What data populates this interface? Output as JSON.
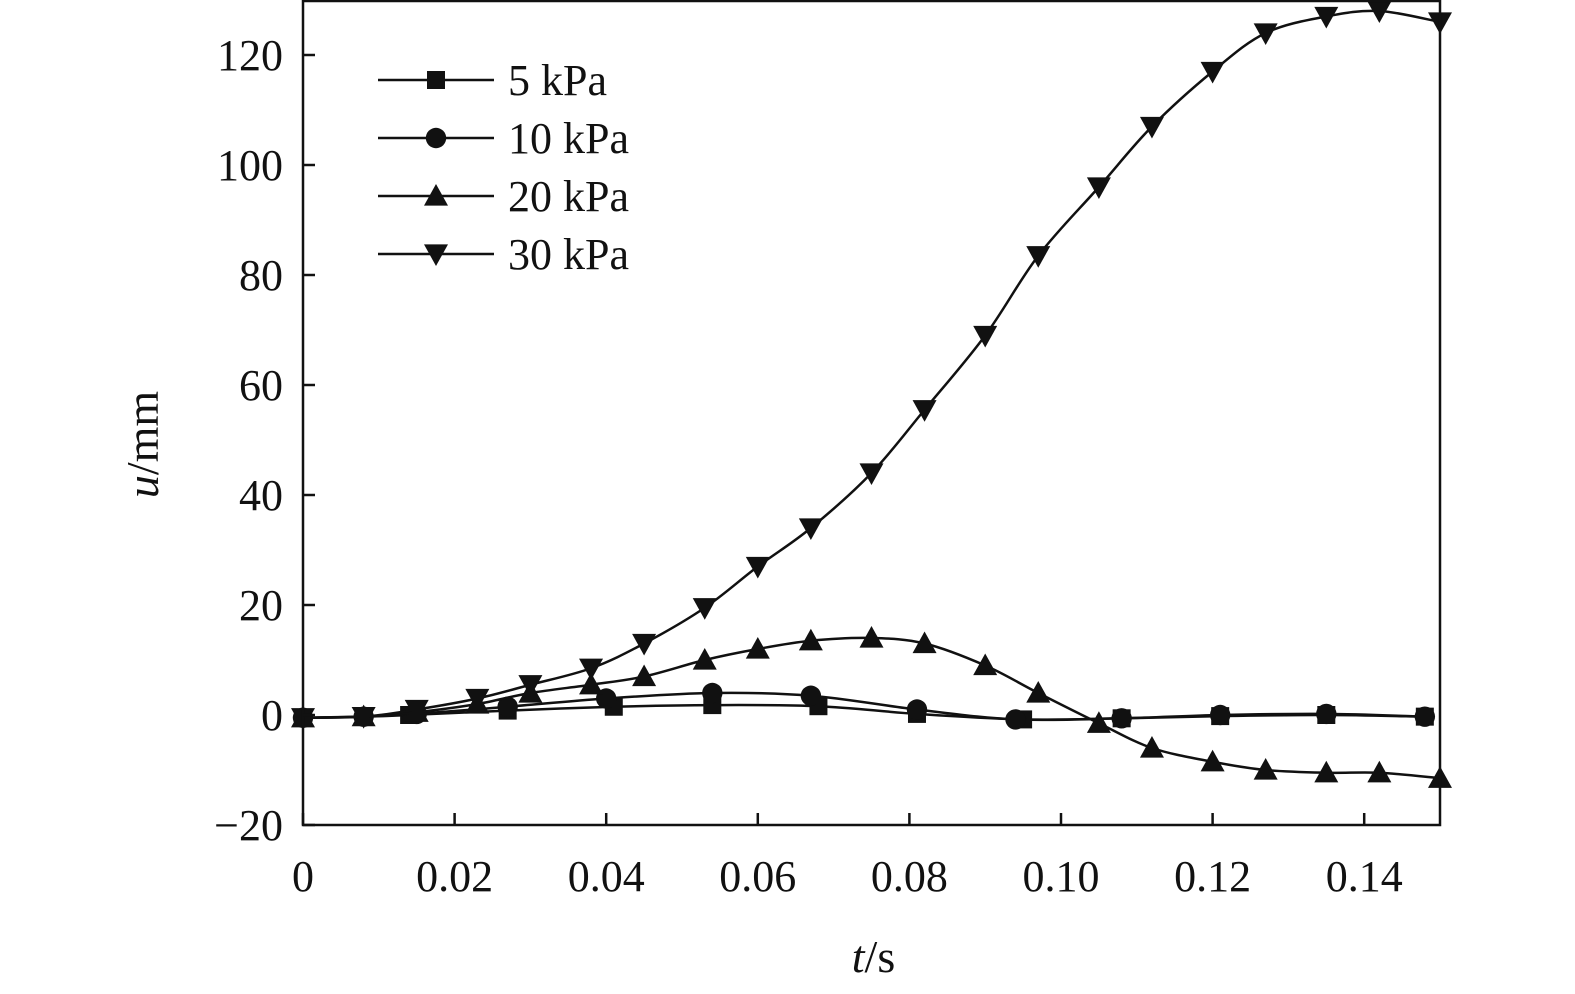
{
  "chart_data": {
    "type": "line",
    "title": "",
    "xlabel_var": "t",
    "xlabel_unit": "/s",
    "ylabel_var": "u",
    "ylabel_unit": "/mm",
    "xlim": [
      0,
      0.15
    ],
    "ylim": [
      -20,
      130
    ],
    "xticks": [
      0,
      0.02,
      0.04,
      0.06,
      0.08,
      0.1,
      0.12,
      0.14
    ],
    "xtick_labels": [
      "0",
      "0.02",
      "0.04",
      "0.06",
      "0.08",
      "0.10",
      "0.12",
      "0.14"
    ],
    "yticks": [
      -20,
      0,
      20,
      40,
      60,
      80,
      100,
      120
    ],
    "ytick_labels": [
      "−20",
      "0",
      "20",
      "40",
      "60",
      "80",
      "100",
      "120"
    ],
    "grid": false,
    "legend_position": "top-left",
    "series": [
      {
        "name": "5 kPa",
        "marker": "square",
        "x": [
          0,
          0.008,
          0.014,
          0.027,
          0.041,
          0.054,
          0.068,
          0.081,
          0.095,
          0.108,
          0.121,
          0.135,
          0.148
        ],
        "y": [
          -0.5,
          -0.3,
          0,
          0.8,
          1.5,
          1.8,
          1.6,
          0.2,
          -0.8,
          -0.6,
          -0.2,
          0,
          -0.3
        ]
      },
      {
        "name": "10 kPa",
        "marker": "circle",
        "x": [
          0,
          0.008,
          0.015,
          0.027,
          0.04,
          0.054,
          0.067,
          0.081,
          0.094,
          0.108,
          0.121,
          0.135,
          0.148
        ],
        "y": [
          -0.5,
          -0.3,
          0.2,
          1.5,
          3,
          4,
          3.5,
          1,
          -0.8,
          -0.6,
          0,
          0.2,
          -0.3
        ]
      },
      {
        "name": "20 kPa",
        "marker": "triangle-up",
        "x": [
          0,
          0.008,
          0.015,
          0.023,
          0.03,
          0.038,
          0.045,
          0.053,
          0.06,
          0.067,
          0.075,
          0.082,
          0.09,
          0.097,
          0.105,
          0.112,
          0.12,
          0.127,
          0.135,
          0.142,
          0.15
        ],
        "y": [
          -0.5,
          -0.3,
          0.5,
          2,
          4,
          5.5,
          7,
          10,
          12,
          13.5,
          14,
          13,
          9,
          4,
          -1.5,
          -6,
          -8.5,
          -10,
          -10.5,
          -10.5,
          -11.5
        ]
      },
      {
        "name": "30 kPa",
        "marker": "triangle-down",
        "x": [
          0,
          0.008,
          0.015,
          0.023,
          0.03,
          0.038,
          0.045,
          0.053,
          0.06,
          0.067,
          0.075,
          0.082,
          0.09,
          0.097,
          0.105,
          0.112,
          0.12,
          0.127,
          0.135,
          0.142,
          0.15
        ],
        "y": [
          -0.5,
          -0.3,
          1,
          3,
          5.5,
          8.5,
          13,
          19.5,
          27,
          34,
          44,
          55.5,
          69,
          83.5,
          96,
          107,
          117,
          124,
          127,
          128,
          126
        ]
      }
    ]
  }
}
